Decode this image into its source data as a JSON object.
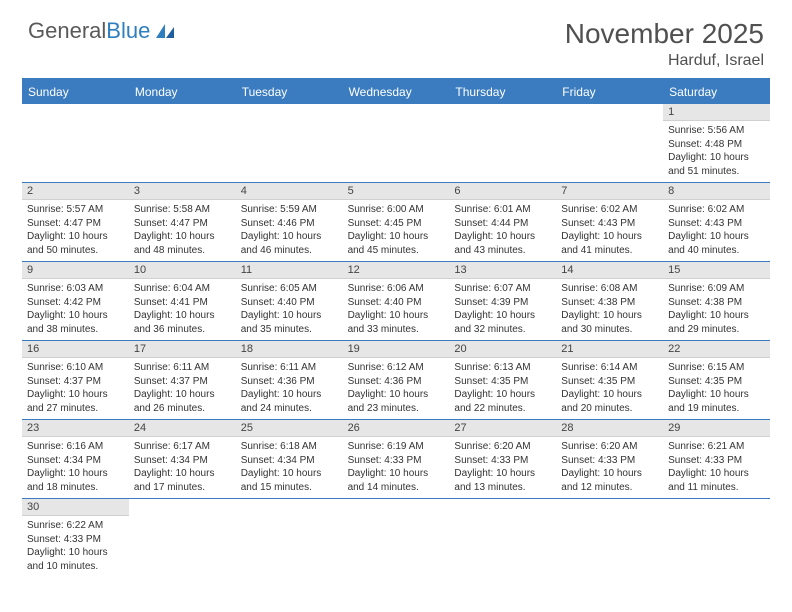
{
  "logo": {
    "text1": "General",
    "text2": "Blue"
  },
  "title": "November 2025",
  "location": "Harduf, Israel",
  "colors": {
    "header_bg": "#3a7cbf",
    "header_text": "#ffffff",
    "daynum_bg": "#e6e6e6",
    "border": "#3a7cbf",
    "text": "#333333"
  },
  "day_names": [
    "Sunday",
    "Monday",
    "Tuesday",
    "Wednesday",
    "Thursday",
    "Friday",
    "Saturday"
  ],
  "weeks": [
    [
      null,
      null,
      null,
      null,
      null,
      null,
      {
        "n": "1",
        "sr": "Sunrise: 5:56 AM",
        "ss": "Sunset: 4:48 PM",
        "dl": "Daylight: 10 hours and 51 minutes."
      }
    ],
    [
      {
        "n": "2",
        "sr": "Sunrise: 5:57 AM",
        "ss": "Sunset: 4:47 PM",
        "dl": "Daylight: 10 hours and 50 minutes."
      },
      {
        "n": "3",
        "sr": "Sunrise: 5:58 AM",
        "ss": "Sunset: 4:47 PM",
        "dl": "Daylight: 10 hours and 48 minutes."
      },
      {
        "n": "4",
        "sr": "Sunrise: 5:59 AM",
        "ss": "Sunset: 4:46 PM",
        "dl": "Daylight: 10 hours and 46 minutes."
      },
      {
        "n": "5",
        "sr": "Sunrise: 6:00 AM",
        "ss": "Sunset: 4:45 PM",
        "dl": "Daylight: 10 hours and 45 minutes."
      },
      {
        "n": "6",
        "sr": "Sunrise: 6:01 AM",
        "ss": "Sunset: 4:44 PM",
        "dl": "Daylight: 10 hours and 43 minutes."
      },
      {
        "n": "7",
        "sr": "Sunrise: 6:02 AM",
        "ss": "Sunset: 4:43 PM",
        "dl": "Daylight: 10 hours and 41 minutes."
      },
      {
        "n": "8",
        "sr": "Sunrise: 6:02 AM",
        "ss": "Sunset: 4:43 PM",
        "dl": "Daylight: 10 hours and 40 minutes."
      }
    ],
    [
      {
        "n": "9",
        "sr": "Sunrise: 6:03 AM",
        "ss": "Sunset: 4:42 PM",
        "dl": "Daylight: 10 hours and 38 minutes."
      },
      {
        "n": "10",
        "sr": "Sunrise: 6:04 AM",
        "ss": "Sunset: 4:41 PM",
        "dl": "Daylight: 10 hours and 36 minutes."
      },
      {
        "n": "11",
        "sr": "Sunrise: 6:05 AM",
        "ss": "Sunset: 4:40 PM",
        "dl": "Daylight: 10 hours and 35 minutes."
      },
      {
        "n": "12",
        "sr": "Sunrise: 6:06 AM",
        "ss": "Sunset: 4:40 PM",
        "dl": "Daylight: 10 hours and 33 minutes."
      },
      {
        "n": "13",
        "sr": "Sunrise: 6:07 AM",
        "ss": "Sunset: 4:39 PM",
        "dl": "Daylight: 10 hours and 32 minutes."
      },
      {
        "n": "14",
        "sr": "Sunrise: 6:08 AM",
        "ss": "Sunset: 4:38 PM",
        "dl": "Daylight: 10 hours and 30 minutes."
      },
      {
        "n": "15",
        "sr": "Sunrise: 6:09 AM",
        "ss": "Sunset: 4:38 PM",
        "dl": "Daylight: 10 hours and 29 minutes."
      }
    ],
    [
      {
        "n": "16",
        "sr": "Sunrise: 6:10 AM",
        "ss": "Sunset: 4:37 PM",
        "dl": "Daylight: 10 hours and 27 minutes."
      },
      {
        "n": "17",
        "sr": "Sunrise: 6:11 AM",
        "ss": "Sunset: 4:37 PM",
        "dl": "Daylight: 10 hours and 26 minutes."
      },
      {
        "n": "18",
        "sr": "Sunrise: 6:11 AM",
        "ss": "Sunset: 4:36 PM",
        "dl": "Daylight: 10 hours and 24 minutes."
      },
      {
        "n": "19",
        "sr": "Sunrise: 6:12 AM",
        "ss": "Sunset: 4:36 PM",
        "dl": "Daylight: 10 hours and 23 minutes."
      },
      {
        "n": "20",
        "sr": "Sunrise: 6:13 AM",
        "ss": "Sunset: 4:35 PM",
        "dl": "Daylight: 10 hours and 22 minutes."
      },
      {
        "n": "21",
        "sr": "Sunrise: 6:14 AM",
        "ss": "Sunset: 4:35 PM",
        "dl": "Daylight: 10 hours and 20 minutes."
      },
      {
        "n": "22",
        "sr": "Sunrise: 6:15 AM",
        "ss": "Sunset: 4:35 PM",
        "dl": "Daylight: 10 hours and 19 minutes."
      }
    ],
    [
      {
        "n": "23",
        "sr": "Sunrise: 6:16 AM",
        "ss": "Sunset: 4:34 PM",
        "dl": "Daylight: 10 hours and 18 minutes."
      },
      {
        "n": "24",
        "sr": "Sunrise: 6:17 AM",
        "ss": "Sunset: 4:34 PM",
        "dl": "Daylight: 10 hours and 17 minutes."
      },
      {
        "n": "25",
        "sr": "Sunrise: 6:18 AM",
        "ss": "Sunset: 4:34 PM",
        "dl": "Daylight: 10 hours and 15 minutes."
      },
      {
        "n": "26",
        "sr": "Sunrise: 6:19 AM",
        "ss": "Sunset: 4:33 PM",
        "dl": "Daylight: 10 hours and 14 minutes."
      },
      {
        "n": "27",
        "sr": "Sunrise: 6:20 AM",
        "ss": "Sunset: 4:33 PM",
        "dl": "Daylight: 10 hours and 13 minutes."
      },
      {
        "n": "28",
        "sr": "Sunrise: 6:20 AM",
        "ss": "Sunset: 4:33 PM",
        "dl": "Daylight: 10 hours and 12 minutes."
      },
      {
        "n": "29",
        "sr": "Sunrise: 6:21 AM",
        "ss": "Sunset: 4:33 PM",
        "dl": "Daylight: 10 hours and 11 minutes."
      }
    ],
    [
      {
        "n": "30",
        "sr": "Sunrise: 6:22 AM",
        "ss": "Sunset: 4:33 PM",
        "dl": "Daylight: 10 hours and 10 minutes."
      },
      null,
      null,
      null,
      null,
      null,
      null
    ]
  ]
}
